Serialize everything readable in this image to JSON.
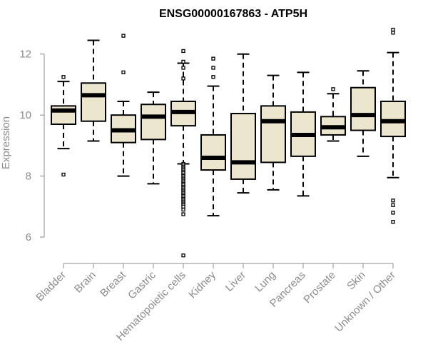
{
  "chart_data": {
    "type": "boxplot",
    "title": "ENSG00000167863 - ATP5H",
    "xlabel": "",
    "ylabel": "Expression",
    "ylim": [
      5.3,
      13.0
    ],
    "yticks": [
      6,
      8,
      10,
      12
    ],
    "colors": {
      "box_fill": "#ede6cf",
      "box_stroke": "#000000",
      "axis": "#8c8c8c",
      "text": "#8c8c8c"
    },
    "categories": [
      "Bladder",
      "Brain",
      "Breast",
      "Gastric",
      "Hematopoietic cells",
      "Kidney",
      "Liver",
      "Lung",
      "Pancreas",
      "Prostate",
      "Skin",
      "Unknown / Other"
    ],
    "series": [
      {
        "name": "Bladder",
        "whisker_low": 8.9,
        "q1": 9.7,
        "median": 10.15,
        "q3": 10.3,
        "whisker_high": 11.1,
        "outliers": [
          11.25,
          8.05
        ]
      },
      {
        "name": "Brain",
        "whisker_low": 9.15,
        "q1": 9.8,
        "median": 10.65,
        "q3": 11.05,
        "whisker_high": 12.45,
        "outliers": []
      },
      {
        "name": "Breast",
        "whisker_low": 8.0,
        "q1": 9.1,
        "median": 9.5,
        "q3": 10.0,
        "whisker_high": 10.45,
        "outliers": [
          12.6,
          11.4
        ]
      },
      {
        "name": "Gastric",
        "whisker_low": 7.75,
        "q1": 9.2,
        "median": 9.95,
        "q3": 10.35,
        "whisker_high": 10.75,
        "outliers": []
      },
      {
        "name": "Hematopoietic cells",
        "whisker_low": 8.4,
        "q1": 9.65,
        "median": 10.1,
        "q3": 10.45,
        "whisker_high": 11.7,
        "outliers": [
          12.1,
          11.75,
          11.55,
          11.2,
          8.4,
          8.35,
          8.3,
          8.25,
          8.2,
          8.15,
          8.1,
          8.05,
          8.0,
          7.95,
          7.9,
          7.85,
          7.8,
          7.75,
          7.7,
          7.65,
          7.6,
          7.55,
          7.5,
          7.45,
          7.4,
          7.35,
          7.3,
          7.25,
          7.2,
          7.15,
          7.1,
          7.05,
          7.0,
          6.9,
          6.75,
          5.4
        ]
      },
      {
        "name": "Kidney",
        "whisker_low": 6.7,
        "q1": 8.2,
        "median": 8.6,
        "q3": 9.35,
        "whisker_high": 10.95,
        "outliers": [
          11.85,
          11.55,
          11.25
        ]
      },
      {
        "name": "Liver",
        "whisker_low": 7.45,
        "q1": 7.9,
        "median": 8.45,
        "q3": 10.05,
        "whisker_high": 12.0,
        "outliers": []
      },
      {
        "name": "Lung",
        "whisker_low": 7.55,
        "q1": 8.45,
        "median": 9.8,
        "q3": 10.3,
        "whisker_high": 11.3,
        "outliers": []
      },
      {
        "name": "Pancreas",
        "whisker_low": 7.35,
        "q1": 8.65,
        "median": 9.35,
        "q3": 10.1,
        "whisker_high": 11.4,
        "outliers": []
      },
      {
        "name": "Prostate",
        "whisker_low": 9.15,
        "q1": 9.35,
        "median": 9.6,
        "q3": 9.95,
        "whisker_high": 10.7,
        "outliers": [
          10.85
        ]
      },
      {
        "name": "Skin",
        "whisker_low": 8.65,
        "q1": 9.5,
        "median": 10.0,
        "q3": 10.9,
        "whisker_high": 11.45,
        "outliers": []
      },
      {
        "name": "Unknown / Other",
        "whisker_low": 7.95,
        "q1": 9.3,
        "median": 9.8,
        "q3": 10.45,
        "whisker_high": 12.05,
        "outliers": [
          12.8,
          12.7,
          7.2,
          7.05,
          6.8,
          6.5
        ]
      }
    ]
  }
}
